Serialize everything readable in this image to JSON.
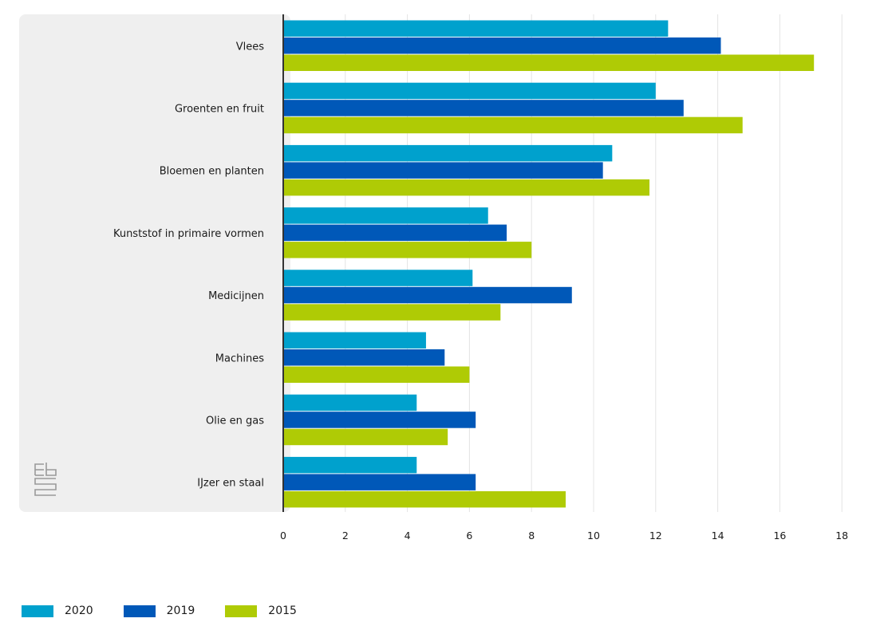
{
  "chart_data": {
    "type": "bar",
    "orientation": "horizontal",
    "categories": [
      "Vlees",
      "Groenten en fruit",
      "Bloemen en planten",
      "Kunststof in primaire vormen",
      "Medicijnen",
      "Machines",
      "Olie en gas",
      "IJzer en staal"
    ],
    "series": [
      {
        "name": "2020",
        "color": "#00a1cd",
        "values": [
          12.4,
          12.0,
          10.6,
          6.6,
          6.1,
          4.6,
          4.3,
          4.3
        ]
      },
      {
        "name": "2019",
        "color": "#0058b8",
        "values": [
          14.1,
          12.9,
          10.3,
          7.2,
          9.3,
          5.2,
          6.2,
          6.2
        ]
      },
      {
        "name": "2015",
        "color": "#afcb05",
        "values": [
          17.1,
          14.8,
          11.8,
          8.0,
          7.0,
          6.0,
          5.3,
          9.1
        ]
      }
    ],
    "xlim": [
      0,
      18
    ],
    "xticks": [
      "0",
      "2",
      "4",
      "6",
      "8",
      "10",
      "12",
      "14",
      "16",
      "18"
    ],
    "grid": true,
    "legend_position": "bottom-left",
    "logo": "cbs-logo-icon"
  }
}
